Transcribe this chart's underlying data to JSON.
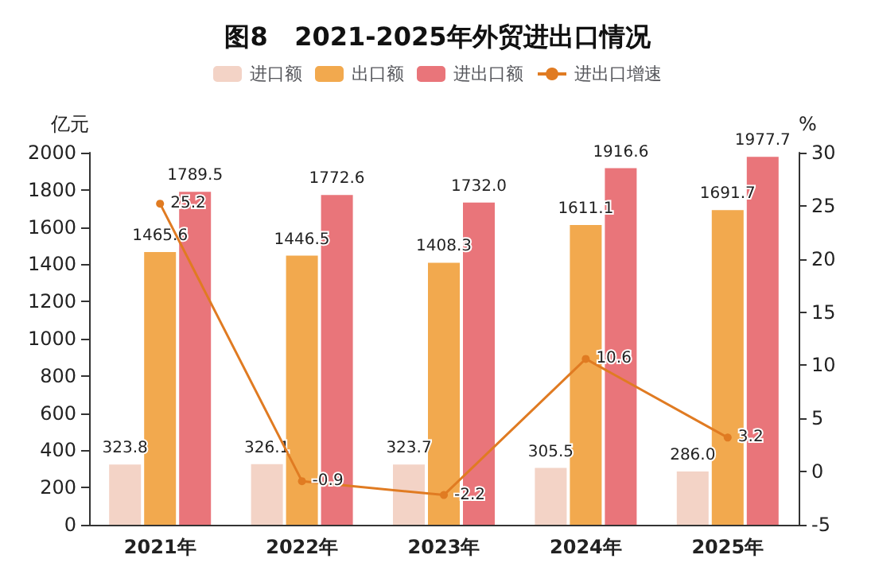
{
  "chart_data": {
    "type": "bar",
    "title": "图8   2021-2025年外贸进出口情况",
    "ylabel": "亿元",
    "y2label": "%",
    "categories": [
      "2021年",
      "2022年",
      "2023年",
      "2024年",
      "2025年"
    ],
    "series": [
      {
        "name": "进口额",
        "color": "#f3d3c6",
        "values": [
          323.8,
          326.1,
          323.7,
          305.5,
          286.0
        ],
        "value_labels": [
          "323.8",
          "326.1",
          "323.7",
          "305.5",
          "286.0"
        ]
      },
      {
        "name": "出口额",
        "color": "#f2a94e",
        "values": [
          1465.6,
          1446.5,
          1408.3,
          1611.1,
          1691.7
        ]
      },
      {
        "name": "进出口额",
        "color": "#e9757a",
        "values": [
          1789.5,
          1772.6,
          1732.0,
          1916.6,
          1977.7
        ],
        "value_labels": [
          "1789.5",
          "1772.6",
          "1732.0",
          "1916.6",
          "1977.7"
        ]
      },
      {
        "name": "进出口增速",
        "type": "line",
        "axis": "y2",
        "color": "#e07b22",
        "values": [
          25.2,
          -0.9,
          -2.2,
          10.6,
          3.2
        ],
        "value_labels": [
          "25.2",
          "-0.9",
          "-2.2",
          "10.6",
          "3.2"
        ]
      }
    ],
    "ylim": [
      0,
      2000
    ],
    "yticks": [
      0,
      200,
      400,
      600,
      800,
      1000,
      1200,
      1400,
      1600,
      1800,
      2000
    ],
    "y2lim": [
      -5,
      30
    ],
    "y2ticks": [
      -5,
      0,
      5,
      10,
      15,
      20,
      25,
      30
    ],
    "data_labels": true,
    "legend": "top",
    "grid": false,
    "marker": "circle",
    "line_style": "solid"
  }
}
